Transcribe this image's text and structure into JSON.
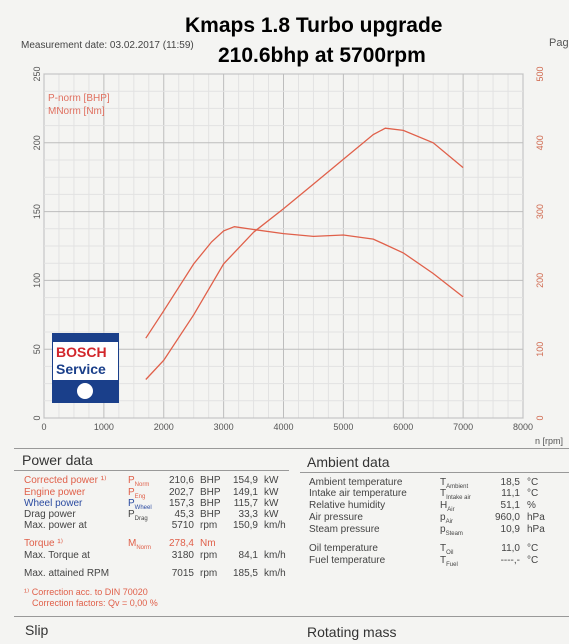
{
  "title": {
    "line1": "Kmaps 1.8 Turbo upgrade",
    "line2": "210.6bhp at 5700rpm"
  },
  "measurement_date": "Measurement date: 03.02.2017 (11:59)",
  "page_label": "Pag",
  "colors": {
    "curve": "#e0604a",
    "bosch_red": "#d2262b",
    "bosch_blue": "#1a3f8a"
  },
  "logo": {
    "name": "BOSCH",
    "sub": "Service"
  },
  "chart_data": {
    "type": "line",
    "xlabel": "n [rpm]",
    "xlim": [
      0,
      8000
    ],
    "x_ticks": [
      0,
      1000,
      2000,
      3000,
      4000,
      5000,
      6000,
      7000,
      8000
    ],
    "y_left_lim": [
      0,
      250
    ],
    "y_left_ticks": [
      0,
      50,
      100,
      150,
      200,
      250
    ],
    "y_right_lim": [
      0,
      500
    ],
    "y_right_ticks": [
      0,
      100,
      200,
      300,
      400,
      500
    ],
    "grid": true,
    "legend": [
      "P-norm [BHP]",
      "MNorm [Nm]"
    ],
    "series": [
      {
        "name": "P-norm [BHP]",
        "axis": "left",
        "x": [
          1700,
          2000,
          2500,
          3000,
          3500,
          4000,
          4500,
          5000,
          5500,
          5700,
          6000,
          6500,
          7000
        ],
        "y": [
          28,
          42,
          75,
          112,
          135,
          152,
          170,
          188,
          206,
          210.6,
          209,
          200,
          182
        ]
      },
      {
        "name": "MNorm [Nm]",
        "axis": "left",
        "x": [
          1700,
          2000,
          2500,
          2800,
          3000,
          3180,
          3500,
          4000,
          4500,
          5000,
          5500,
          6000,
          6500,
          7000
        ],
        "y": [
          58,
          78,
          112,
          128,
          136,
          139,
          137,
          134,
          132,
          133,
          130,
          120,
          105,
          88
        ]
      }
    ]
  },
  "power": {
    "heading": "Power data",
    "rows": [
      {
        "label": "Corrected power ¹⁾",
        "sym": "P",
        "sub": "Norm",
        "v1": "210,6",
        "u1": "BHP",
        "v2": "154,9",
        "u2": "kW",
        "color": "red"
      },
      {
        "label": "Engine power",
        "sym": "P",
        "sub": "Eng",
        "v1": "202,7",
        "u1": "BHP",
        "v2": "149,1",
        "u2": "kW",
        "color": "red"
      },
      {
        "label": "Wheel power",
        "sym": "P",
        "sub": "Wheel",
        "v1": "157,3",
        "u1": "BHP",
        "v2": "115,7",
        "u2": "kW",
        "color": "blue"
      },
      {
        "label": "Drag power",
        "sym": "P",
        "sub": "Drag",
        "v1": "45,3",
        "u1": "BHP",
        "v2": "33,3",
        "u2": "kW",
        "color": "grey"
      },
      {
        "label": "Max. power at",
        "sym": "",
        "sub": "",
        "v1": "5710",
        "u1": "rpm",
        "v2": "150,9",
        "u2": "km/h",
        "color": "grey"
      }
    ],
    "torque": {
      "label": "Torque ¹⁾",
      "sym": "M",
      "sub": "Norm",
      "v1": "278,4",
      "u1": "Nm"
    },
    "max_torque": {
      "label": "Max. Torque at",
      "v1": "3180",
      "u1": "rpm",
      "v2": "84,1",
      "u2": "km/h"
    },
    "max_rpm": {
      "label": "Max. attained RPM",
      "v1": "7015",
      "u1": "rpm",
      "v2": "185,5",
      "u2": "km/h"
    },
    "foot1": "¹⁾ Correction acc. to DIN 70020",
    "foot2": "Correction factors: Qv = 0,00 %"
  },
  "ambient": {
    "heading": "Ambient data",
    "rows": [
      {
        "label": "Ambient temperature",
        "sym": "T",
        "sub": "Ambient",
        "v": "18,5",
        "u": "°C"
      },
      {
        "label": "Intake air temperature",
        "sym": "T",
        "sub": "Intake air",
        "v": "11,1",
        "u": "°C"
      },
      {
        "label": "Relative humidity",
        "sym": "H",
        "sub": "Air",
        "v": "51,1",
        "u": "%"
      },
      {
        "label": "Air pressure",
        "sym": "p",
        "sub": "Air",
        "v": "960,0",
        "u": "hPa"
      },
      {
        "label": "Steam pressure",
        "sym": "p",
        "sub": "Steam",
        "v": "10,9",
        "u": "hPa"
      },
      {
        "label": "Oil temperature",
        "sym": "T",
        "sub": "Oil",
        "v": "11,0",
        "u": "°C"
      },
      {
        "label": "Fuel temperature",
        "sym": "T",
        "sub": "Fuel",
        "v": "----,-",
        "u": "°C"
      }
    ]
  },
  "slip": {
    "heading": "Slip"
  },
  "rotating": {
    "heading": "Rotating mass"
  }
}
